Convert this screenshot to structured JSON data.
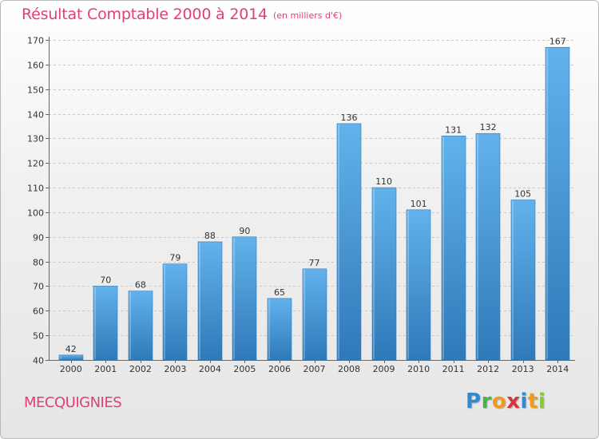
{
  "header": {
    "title": "Résultat Comptable 2000 à 2014",
    "subtitle": "(en milliers d'€)"
  },
  "footer": {
    "commune": "MECQUIGNIES",
    "logo_letters": [
      "P",
      "r",
      "o",
      "x",
      "i",
      "t",
      "i"
    ]
  },
  "colors": {
    "title": "#e0407a",
    "bar": "#3f97d9",
    "bar_light": "#62b2ec",
    "bar_dark": "#2f79b8",
    "grid": "#c8c8c8"
  },
  "chart_data": {
    "type": "bar",
    "title": "Résultat Comptable 2000 à 2014",
    "subtitle": "(en milliers d'€)",
    "categories": [
      "2000",
      "2001",
      "2002",
      "2003",
      "2004",
      "2005",
      "2006",
      "2007",
      "2008",
      "2009",
      "2010",
      "2011",
      "2012",
      "2013",
      "2014"
    ],
    "values": [
      42,
      70,
      68,
      79,
      88,
      90,
      65,
      77,
      136,
      110,
      101,
      131,
      132,
      105,
      167
    ],
    "ylim": [
      40,
      170
    ],
    "yticks": [
      40,
      50,
      60,
      70,
      80,
      90,
      100,
      110,
      120,
      130,
      140,
      150,
      160,
      170
    ],
    "grid": true,
    "data_labels": true
  }
}
